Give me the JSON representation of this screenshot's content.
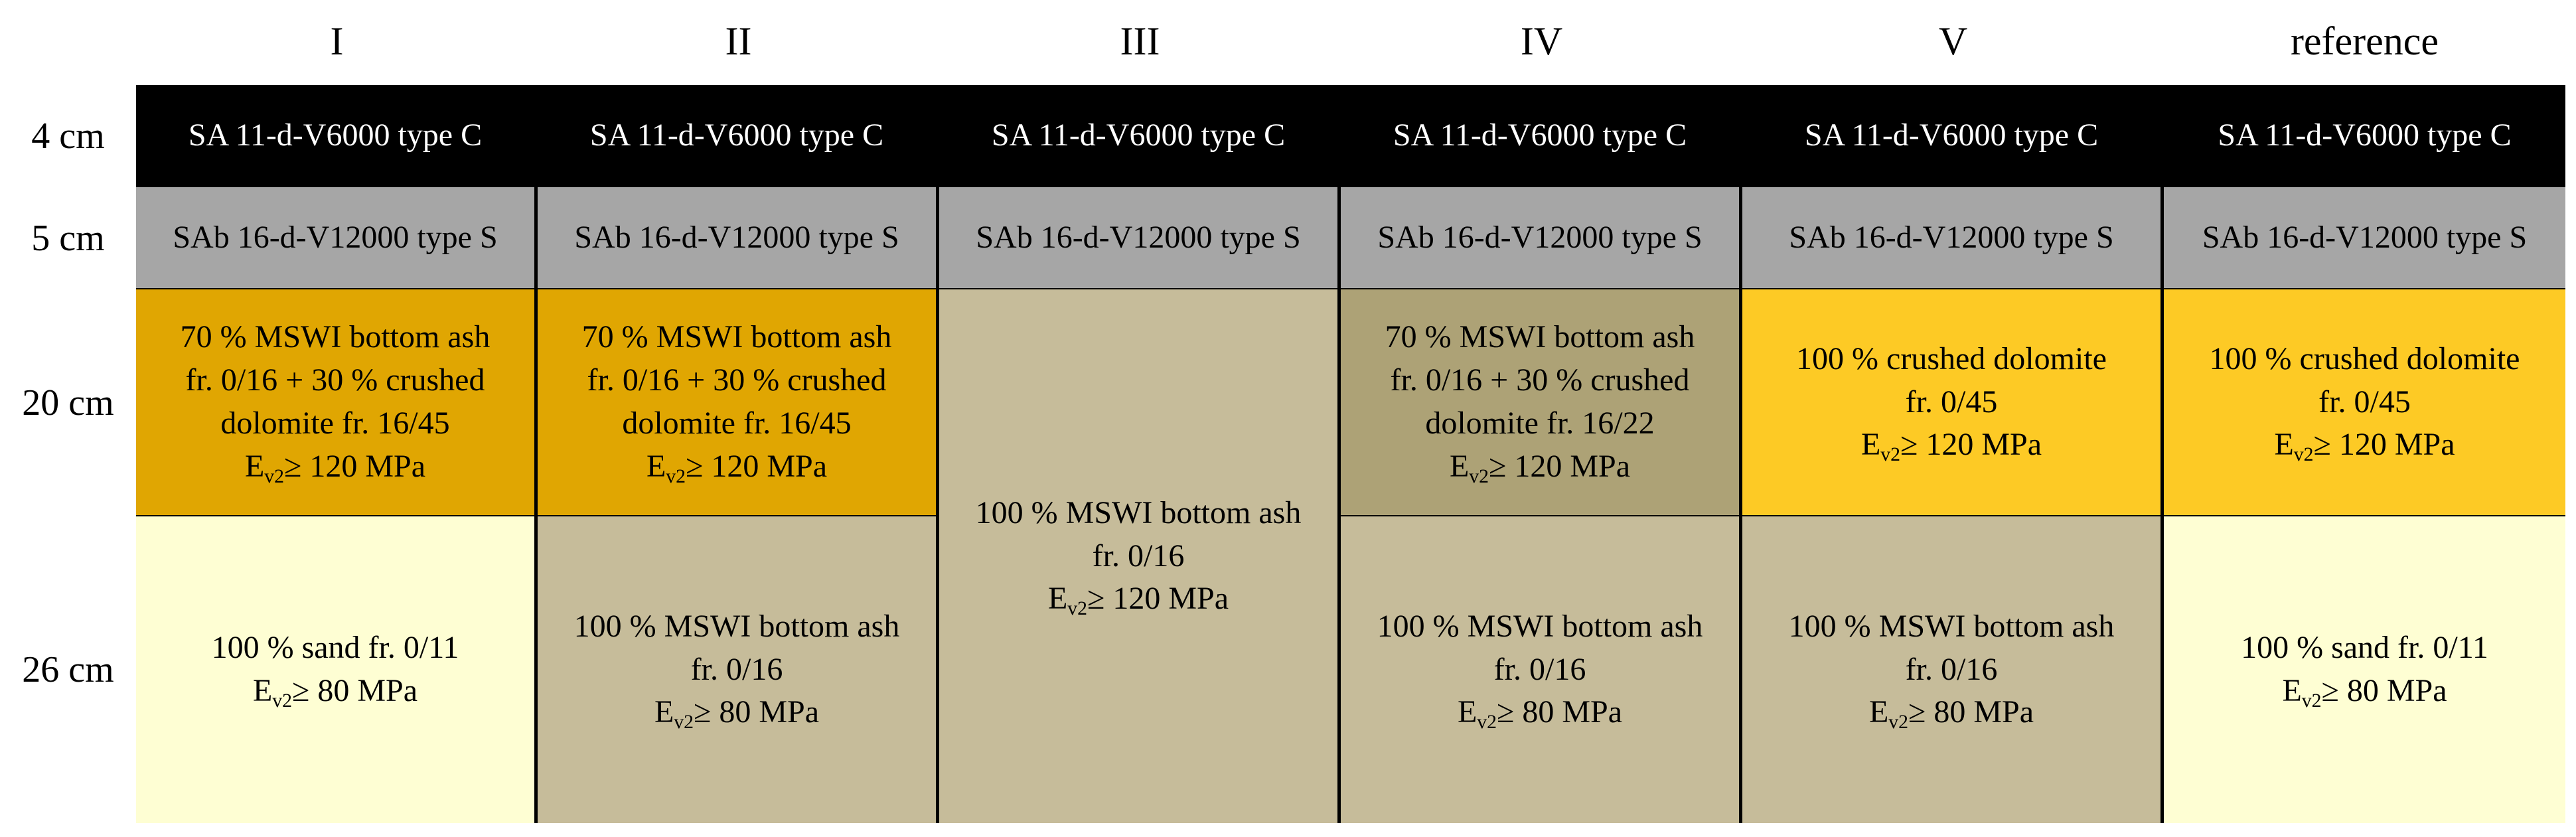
{
  "columns": [
    "I",
    "II",
    "III",
    "IV",
    "V",
    "reference"
  ],
  "thickness_labels": [
    "4 cm",
    "5 cm",
    "20 cm",
    "26 cm"
  ],
  "surface_course": "SA 11-d-V6000 type C",
  "binder_course": "SAb 16-d-V12000 type S",
  "ev2_prefix": "E",
  "ev2_sub": "v2",
  "layers": {
    "c1_upper": {
      "lines": [
        "70 % MSWI bottom ash",
        "fr. 0/16 + 30 % crushed",
        "dolomite fr. 16/45"
      ],
      "ev2": "≥ 120 MPa"
    },
    "c2_upper": {
      "lines": [
        "70 % MSWI bottom ash",
        "fr. 0/16  + 30 % crushed",
        "dolomite fr. 16/45"
      ],
      "ev2": "≥ 120 MPa"
    },
    "c3_full": {
      "lines": [
        "100 % MSWI bottom ash",
        "fr. 0/16"
      ],
      "ev2": "≥ 120 MPa"
    },
    "c4_upper": {
      "lines": [
        "70 % MSWI bottom ash",
        "fr. 0/16  + 30 % crushed",
        "dolomite fr. 16/22"
      ],
      "ev2": "≥ 120 MPa"
    },
    "c5_upper": {
      "lines": [
        "100 % crushed dolomite",
        "fr. 0/45"
      ],
      "ev2": "≥ 120 MPa"
    },
    "c6_upper": {
      "lines": [
        "100 % crushed dolomite",
        "fr. 0/45"
      ],
      "ev2": "≥ 120 MPa"
    },
    "c1_lower": {
      "lines": [
        "100 % sand fr. 0/11"
      ],
      "ev2": "≥ 80 MPa"
    },
    "c2_lower": {
      "lines": [
        "100 % MSWI bottom ash",
        "fr. 0/16"
      ],
      "ev2": "≥ 80 MPa"
    },
    "c4_lower": {
      "lines": [
        "100 % MSWI bottom ash",
        "fr. 0/16"
      ],
      "ev2": "≥ 80 MPa"
    },
    "c5_lower": {
      "lines": [
        "100 % MSWI bottom ash",
        "fr. 0/16"
      ],
      "ev2": "≥ 80 MPa"
    },
    "c6_lower": {
      "lines": [
        "100 % sand fr. 0/11"
      ],
      "ev2": "≥ 80 MPa"
    }
  },
  "colors": {
    "surface": "#000000",
    "binder": "#a6a6a6",
    "ash_dolomite_mix": "#e0a602",
    "mswi_ash": "#c6bc9a",
    "ash_dolomite_mix_fine": "#ada276",
    "crushed_dolomite": "#fdca25",
    "sand": "#fefed3"
  }
}
